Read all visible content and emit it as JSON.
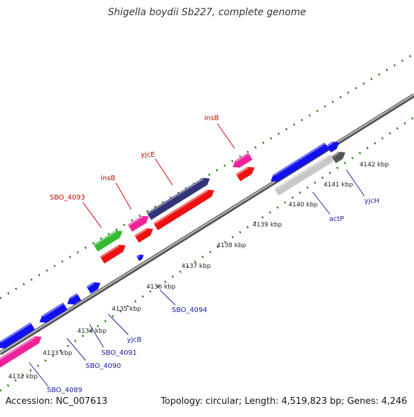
{
  "title": "Shigella boydii Sb227, complete genome",
  "footer": {
    "accession": "Accession: NC_007613",
    "summary": "Topology: circular; Length: 4,519,823 bp; Genes: 4,246"
  },
  "colors": {
    "backbone": "#888888",
    "tick": "#2a7a1a",
    "reverse_label": "#cc0000",
    "forward_label": "#1a1aa0"
  },
  "ticks": [
    "4132 kbp",
    "4133 kbp",
    "4134 kbp",
    "4135 kbp",
    "4136 kbp",
    "4137 kbp",
    "4138 kbp",
    "4139 kbp",
    "4140 kbp",
    "4141 kbp",
    "4142 kbp"
  ],
  "labels": [
    {
      "text": "SBO_4093",
      "strand": "reverse"
    },
    {
      "text": "insB",
      "strand": "reverse"
    },
    {
      "text": "yjcE",
      "strand": "reverse"
    },
    {
      "text": "insB",
      "strand": "reverse"
    },
    {
      "text": "SBO_4094",
      "strand": "forward"
    },
    {
      "text": "yjcB",
      "strand": "forward"
    },
    {
      "text": "SBO_4091",
      "strand": "forward"
    },
    {
      "text": "SBO_4090",
      "strand": "forward"
    },
    {
      "text": "SBO_4089",
      "strand": "forward"
    },
    {
      "text": "actP",
      "strand": "forward"
    },
    {
      "text": "yjcH",
      "strand": "forward"
    }
  ]
}
